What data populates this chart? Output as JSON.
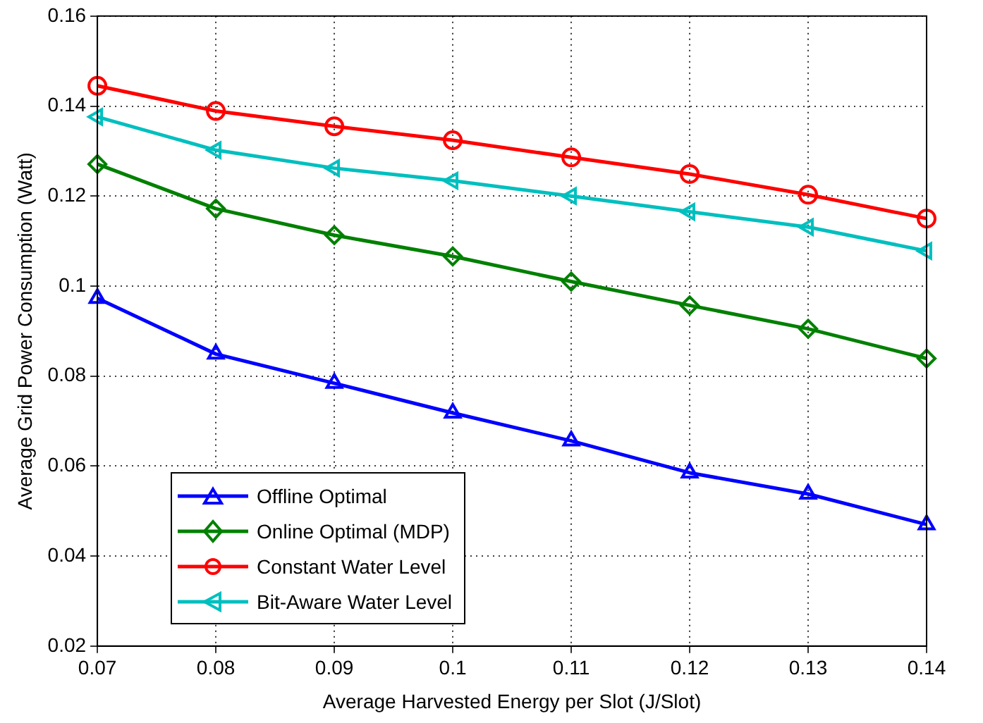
{
  "chart_data": {
    "type": "line",
    "xlabel": "Average Harvested Energy per Slot (J/Slot)",
    "ylabel": "Average Grid Power Consumption (Watt)",
    "x": [
      0.07,
      0.08,
      0.09,
      0.1,
      0.11,
      0.12,
      0.13,
      0.14
    ],
    "series": [
      {
        "name": "Offline Optimal",
        "color": "#0000ff",
        "marker": "triangle",
        "values": [
          0.0973,
          0.0849,
          0.0784,
          0.0718,
          0.0656,
          0.0585,
          0.0538,
          0.047
        ]
      },
      {
        "name": "Online Optimal (MDP)",
        "color": "#008000",
        "marker": "diamond",
        "values": [
          0.1271,
          0.1172,
          0.1113,
          0.1066,
          0.101,
          0.0957,
          0.0905,
          0.0839
        ]
      },
      {
        "name": "Constant Water Level",
        "color": "#ff0000",
        "marker": "circle",
        "values": [
          0.1445,
          0.1389,
          0.1355,
          0.1324,
          0.1286,
          0.1249,
          0.1203,
          0.115
        ]
      },
      {
        "name": "Bit-Aware Water Level",
        "color": "#00bfbf",
        "marker": "triangle-left",
        "values": [
          0.1376,
          0.1302,
          0.1262,
          0.1234,
          0.12,
          0.1165,
          0.1131,
          0.1078
        ]
      }
    ],
    "xlim": [
      0.07,
      0.14
    ],
    "xticks": [
      0.07,
      0.08,
      0.09,
      0.1,
      0.11,
      0.12,
      0.13,
      0.14
    ],
    "ylim": [
      0.02,
      0.16
    ],
    "yticks": [
      0.02,
      0.04,
      0.06,
      0.08,
      0.1,
      0.12,
      0.14,
      0.16
    ],
    "grid": true,
    "legend": "bottom left",
    "line_style": "solid"
  }
}
